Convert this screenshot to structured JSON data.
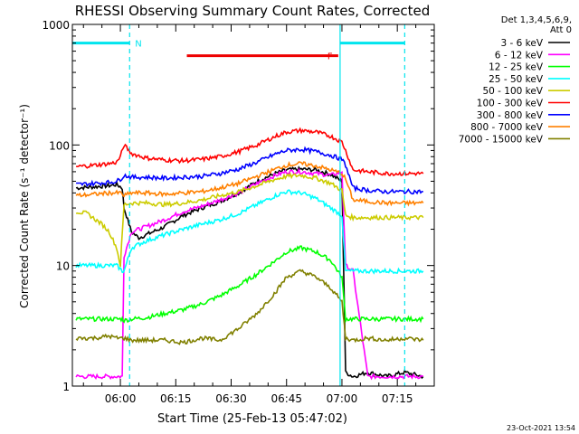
{
  "chart_data": {
    "type": "line",
    "title": "RHESSI Observing Summary Count Rates, Corrected",
    "xlabel": "Start Time (25-Feb-13 05:47:02)",
    "ylabel": "Corrected Count Rate (s⁻¹ detector⁻¹)",
    "y_scale": "log",
    "ylim": [
      1,
      1000
    ],
    "xlim_minutes_after_start": [
      0,
      40
    ],
    "x_ticks": [
      {
        "label": "06:00",
        "t": 13
      },
      {
        "label": "06:15",
        "t": 28
      },
      {
        "label": "06:30",
        "t": 43
      },
      {
        "label": "06:45",
        "t": 58
      },
      {
        "label": "07:00",
        "t": 73
      },
      {
        "label": "07:15",
        "t": 88
      }
    ],
    "x_range_minutes": [
      0,
      98
    ],
    "y_ticks": [
      {
        "label": "1",
        "v": 1
      },
      {
        "label": "10",
        "v": 10
      },
      {
        "label": "100",
        "v": 100
      },
      {
        "label": "1000",
        "v": 1000
      }
    ],
    "legend": {
      "header": [
        "Det 1,3,4,5,6,9,",
        "Att 0"
      ],
      "placement": "right"
    },
    "series": [
      {
        "name": "3 - 6 keV",
        "color": "#000000",
        "x": [
          1,
          6,
          10,
          12,
          13.5,
          14,
          16,
          18,
          20,
          25,
          30,
          35,
          40,
          45,
          50,
          55,
          58,
          62,
          66,
          70,
          73,
          74,
          76,
          80,
          85,
          90,
          95
        ],
        "y": [
          44,
          45,
          46,
          47,
          44,
          30,
          19,
          17,
          18,
          21,
          26,
          30,
          34,
          40,
          50,
          58,
          62,
          63,
          62,
          57,
          50,
          1.3,
          1.2,
          1.3,
          1.2,
          1.3,
          1.2
        ]
      },
      {
        "name": "6 - 12 keV",
        "color": "#ff00ff",
        "x": [
          1,
          6,
          10,
          12,
          13.5,
          14,
          16,
          18,
          20,
          25,
          30,
          35,
          40,
          45,
          50,
          55,
          58,
          62,
          66,
          70,
          73,
          74,
          76,
          80,
          85,
          90,
          95
        ],
        "y": [
          1.2,
          1.2,
          1.2,
          1.2,
          1.2,
          12,
          19,
          20,
          21,
          24,
          28,
          31,
          35,
          40,
          48,
          56,
          60,
          60,
          58,
          56,
          60,
          10,
          9,
          1.2,
          1.2,
          1.2,
          1.2
        ]
      },
      {
        "name": "12 - 25 keV",
        "color": "#00ff00",
        "x": [
          1,
          6,
          10,
          12,
          13.5,
          14,
          16,
          20,
          25,
          30,
          35,
          40,
          45,
          50,
          55,
          58,
          62,
          66,
          70,
          73,
          74,
          76,
          80,
          85,
          90,
          95
        ],
        "y": [
          3.6,
          3.6,
          3.6,
          3.6,
          3.6,
          3.5,
          3.6,
          3.7,
          4,
          4.3,
          4.8,
          5.6,
          6.8,
          8.5,
          11,
          13,
          14,
          13,
          11,
          8,
          3.6,
          3.6,
          3.6,
          3.6,
          3.6,
          3.6
        ]
      },
      {
        "name": "25 - 50 keV",
        "color": "#00ffff",
        "x": [
          1,
          6,
          10,
          12,
          13.5,
          14,
          16,
          18,
          20,
          25,
          30,
          35,
          40,
          45,
          50,
          55,
          58,
          62,
          66,
          70,
          73,
          74,
          76,
          80,
          85,
          90,
          95
        ],
        "y": [
          10,
          10,
          10,
          10,
          9,
          9,
          14,
          15,
          16,
          18,
          20,
          22,
          24,
          27,
          32,
          38,
          41,
          40,
          36,
          30,
          26,
          9,
          9,
          9,
          9,
          9,
          9
        ]
      },
      {
        "name": "50 - 100 keV",
        "color": "#cccc00",
        "x": [
          1,
          4,
          8,
          10,
          12,
          13,
          14,
          16,
          20,
          25,
          30,
          35,
          40,
          45,
          50,
          55,
          58,
          62,
          66,
          70,
          73,
          74,
          76,
          80,
          85,
          90,
          95
        ],
        "y": [
          28,
          27,
          22,
          19,
          14,
          10,
          32,
          33,
          33,
          32,
          33,
          35,
          38,
          41,
          46,
          52,
          55,
          56,
          53,
          48,
          42,
          26,
          25,
          25,
          25,
          25,
          25
        ]
      },
      {
        "name": "100 - 300 keV",
        "color": "#ff0000",
        "x": [
          1,
          6,
          10,
          12,
          13,
          14,
          16,
          20,
          25,
          30,
          35,
          40,
          45,
          50,
          55,
          58,
          62,
          66,
          70,
          73,
          74,
          76,
          80,
          85,
          90,
          95
        ],
        "y": [
          66,
          68,
          70,
          72,
          80,
          100,
          85,
          78,
          75,
          74,
          76,
          80,
          88,
          100,
          118,
          128,
          132,
          128,
          118,
          106,
          90,
          62,
          60,
          58,
          58,
          58
        ]
      },
      {
        "name": "300 - 800 keV",
        "color": "#0000ff",
        "x": [
          1,
          6,
          10,
          12,
          13,
          14,
          16,
          20,
          25,
          30,
          35,
          40,
          45,
          50,
          55,
          58,
          62,
          66,
          70,
          73,
          74,
          76,
          80,
          85,
          90,
          95
        ],
        "y": [
          47,
          48,
          49,
          50,
          52,
          56,
          54,
          54,
          53,
          54,
          55,
          58,
          63,
          72,
          84,
          90,
          92,
          88,
          82,
          76,
          68,
          44,
          42,
          41,
          41,
          41
        ]
      },
      {
        "name": "800 - 7000 keV",
        "color": "#ff8000",
        "x": [
          1,
          6,
          10,
          12,
          13,
          14,
          16,
          20,
          25,
          30,
          35,
          40,
          45,
          50,
          55,
          58,
          62,
          66,
          70,
          73,
          74,
          76,
          80,
          85,
          90,
          95
        ],
        "y": [
          38,
          39,
          40,
          40,
          40,
          38,
          40,
          40,
          39,
          40,
          41,
          44,
          48,
          55,
          63,
          68,
          70,
          67,
          62,
          58,
          52,
          35,
          34,
          33,
          33,
          33
        ]
      },
      {
        "name": "7000 - 15000 keV",
        "color": "#808000",
        "x": [
          1,
          6,
          10,
          12,
          13.5,
          14,
          16,
          20,
          25,
          30,
          35,
          40,
          45,
          50,
          55,
          58,
          62,
          66,
          70,
          73,
          74,
          76,
          80,
          85,
          90,
          95
        ],
        "y": [
          2.5,
          2.5,
          2.6,
          2.5,
          2.5,
          2.5,
          2.4,
          2.4,
          2.4,
          2.3,
          2.5,
          2.4,
          3,
          4,
          6,
          8,
          9,
          8,
          6.5,
          5,
          2.5,
          2.4,
          2.5,
          2.4,
          2.5,
          2.4
        ]
      }
    ],
    "annotations": [
      {
        "type": "bar",
        "label": "N",
        "color": "#00e5ee",
        "segments": [
          [
            0,
            15.5
          ],
          [
            72.5,
            90
          ]
        ],
        "y": 700
      },
      {
        "type": "bar",
        "label": "F",
        "color": "#ee0000",
        "segments": [
          [
            31,
            72
          ]
        ],
        "y": 550
      }
    ],
    "vlines": [
      {
        "t": 15.5,
        "style": "dashed",
        "color": "#00e5ee"
      },
      {
        "t": 72.5,
        "style": "solid",
        "color": "#00e5ee"
      },
      {
        "t": 90,
        "style": "dashed",
        "color": "#00e5ee"
      }
    ],
    "grid": false,
    "footer_date": "23-Oct-2021 13:54"
  }
}
